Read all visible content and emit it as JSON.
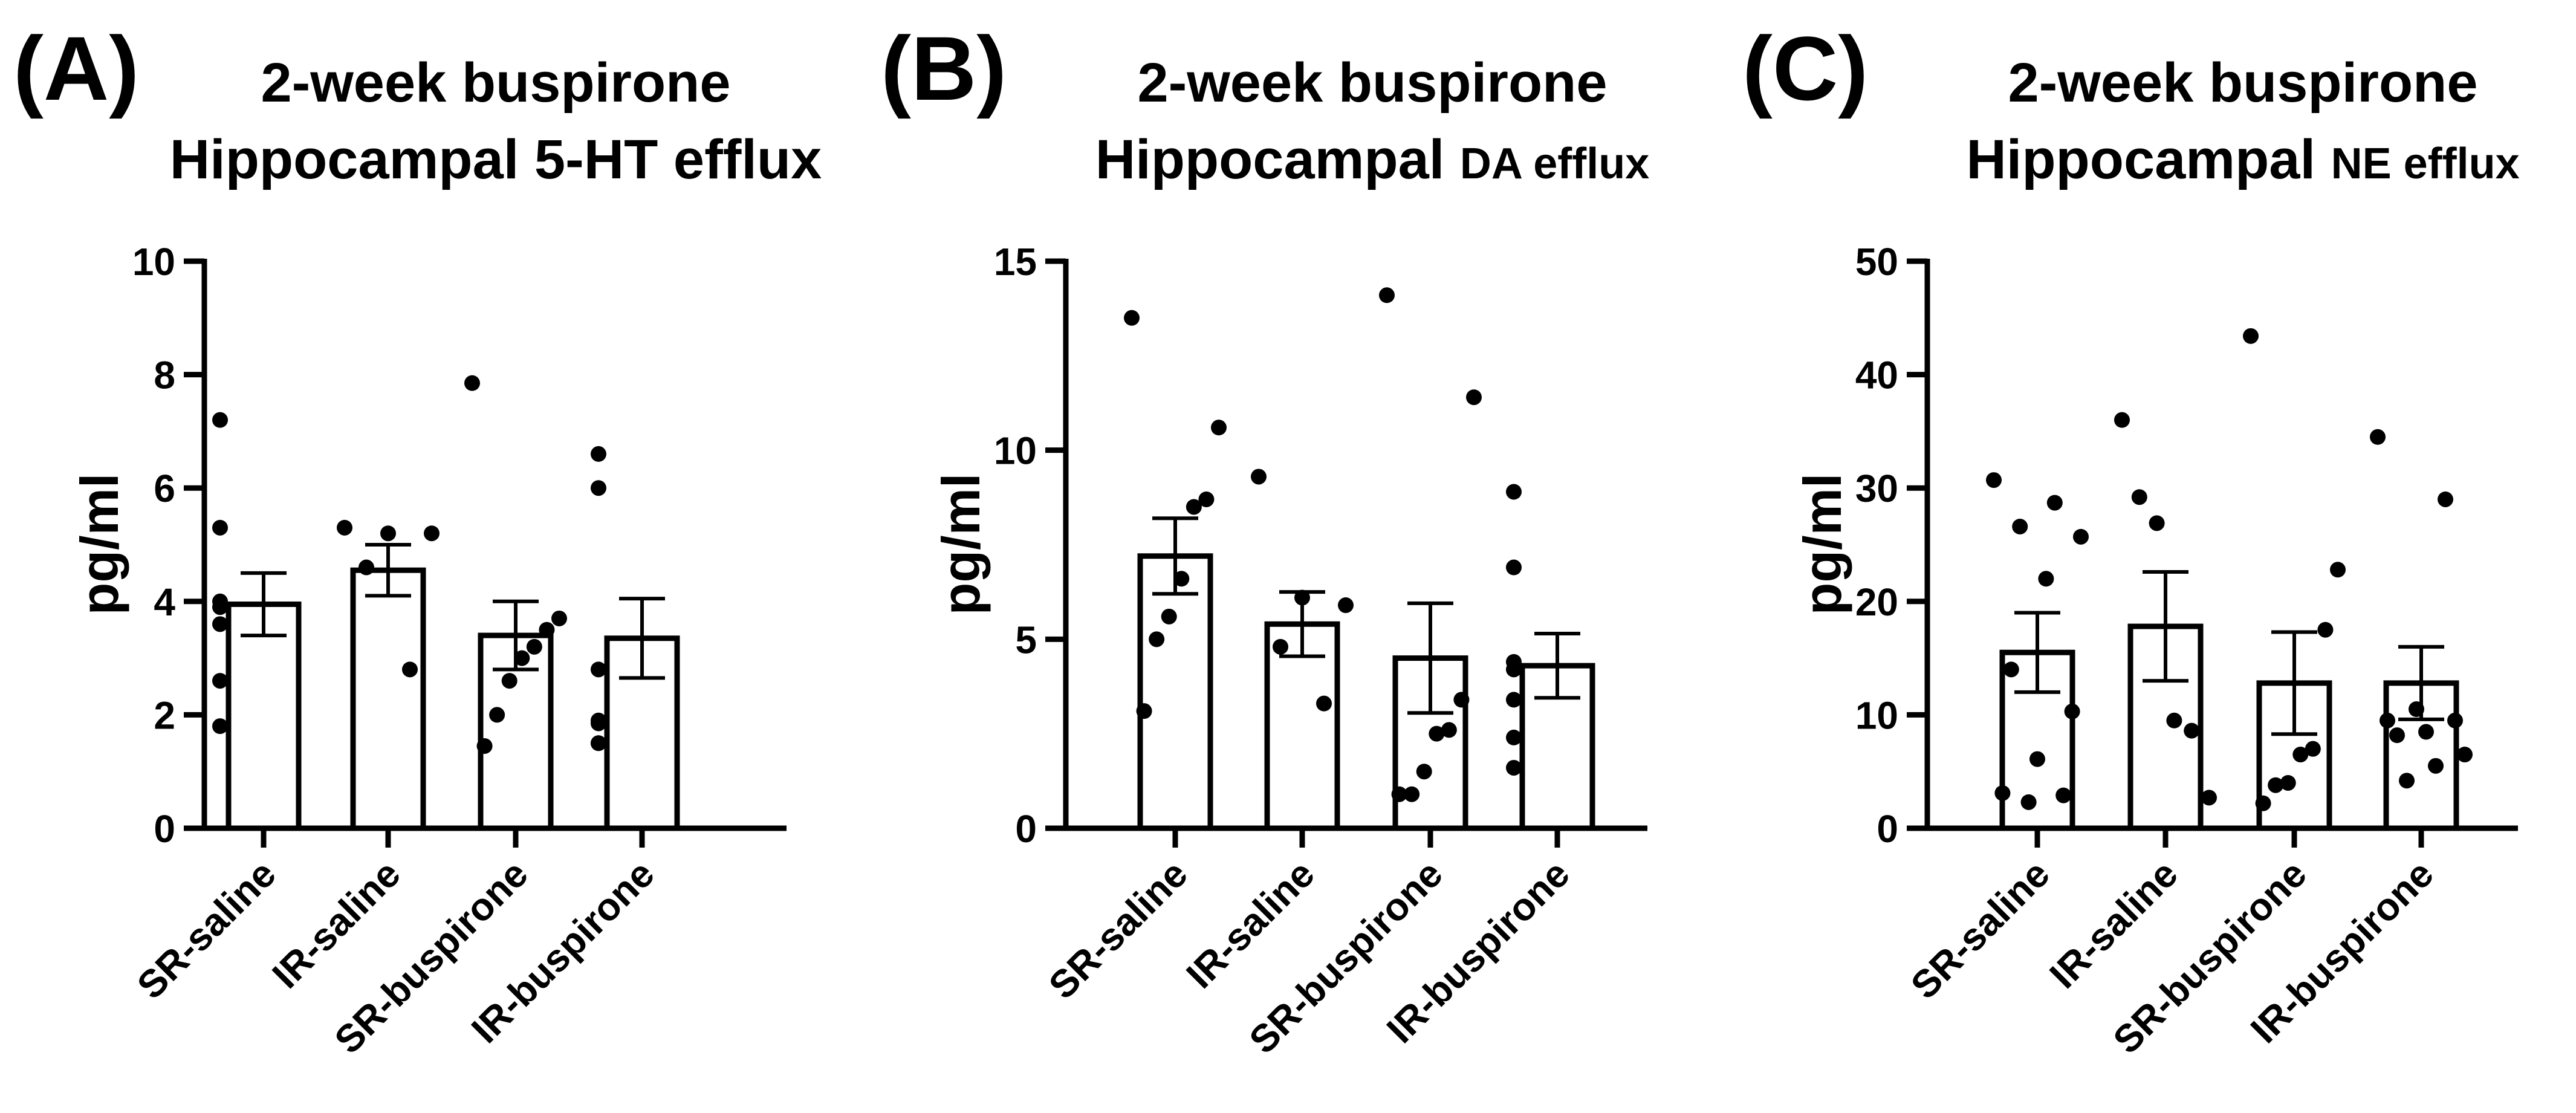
{
  "chart_data": [
    {
      "type": "bar",
      "panel_label": "(A)",
      "title_line1": "2-week buspirone",
      "title_line2": "Hippocampal 5-HT efflux",
      "title_line2_small": "",
      "ylabel": "pg/ml",
      "ylim": [
        0,
        10
      ],
      "yticks": [
        "0",
        "2",
        "4",
        "6",
        "8",
        "10"
      ],
      "tick_values": [
        0,
        2,
        4,
        6,
        8,
        10
      ],
      "categories": [
        "SR-saline",
        "IR-saline",
        "SR-buspirone",
        "IR-buspirone"
      ],
      "values": [
        3.95,
        4.55,
        3.4,
        3.35
      ],
      "errors": [
        0.55,
        0.45,
        0.6,
        0.7
      ],
      "points": [
        [
          7.2,
          5.3,
          4.0,
          3.9,
          3.6,
          2.6,
          1.8
        ],
        [
          5.3,
          5.2,
          5.2,
          4.6,
          2.8
        ],
        [
          7.85,
          3.7,
          3.5,
          3.2,
          3.0,
          2.6,
          2.0,
          1.45
        ],
        [
          6.6,
          6.0,
          2.8,
          1.9,
          1.85,
          1.5,
          1.5
        ]
      ],
      "grid": false
    },
    {
      "type": "bar",
      "panel_label": "(B)",
      "title_line1": "2-week buspirone",
      "title_line2": "Hippocampal ",
      "title_line2_small": "DA efflux",
      "ylabel": "pg/ml",
      "ylim": [
        0,
        15
      ],
      "yticks": [
        "0",
        "5",
        "10",
        "15"
      ],
      "tick_values": [
        0,
        5,
        10,
        15
      ],
      "categories": [
        "SR-saline",
        "IR-saline",
        "SR-buspirone",
        "IR-buspirone"
      ],
      "values": [
        7.2,
        5.4,
        4.5,
        4.3
      ],
      "errors": [
        1.0,
        0.85,
        1.45,
        0.85
      ],
      "points": [
        [
          13.5,
          10.6,
          8.7,
          8.5,
          6.6,
          5.6,
          5.0,
          3.1
        ],
        [
          9.3,
          6.1,
          5.9,
          4.8,
          3.3
        ],
        [
          14.1,
          11.4,
          3.4,
          2.6,
          2.5,
          1.5,
          0.9,
          0.9
        ],
        [
          8.9,
          6.9,
          4.4,
          4.2,
          3.4,
          2.4,
          1.6
        ]
      ],
      "grid": false
    },
    {
      "type": "bar",
      "panel_label": "(C)",
      "title_line1": "2-week buspirone",
      "title_line2": "Hippocampal ",
      "title_line2_small": "NE efflux",
      "ylabel": "pg/ml",
      "ylim": [
        0,
        50
      ],
      "yticks": [
        "0",
        "10",
        "20",
        "30",
        "40",
        "50"
      ],
      "tick_values": [
        0,
        10,
        20,
        30,
        40,
        50
      ],
      "categories": [
        "SR-saline",
        "IR-saline",
        "SR-buspirone",
        "IR-buspirone"
      ],
      "values": [
        15.5,
        17.8,
        12.8,
        12.8
      ],
      "errors": [
        3.5,
        4.8,
        4.5,
        3.2
      ],
      "points": [
        [
          30.7,
          28.7,
          26.6,
          25.7,
          22.0,
          14.0,
          10.3,
          6.1,
          3.1,
          2.9,
          2.3
        ],
        [
          36.0,
          29.2,
          26.9,
          9.5,
          8.6,
          2.7
        ],
        [
          43.4,
          22.8,
          17.5,
          7.0,
          6.5,
          4.0,
          3.8,
          2.2
        ],
        [
          34.5,
          29.0,
          10.5,
          9.5,
          9.5,
          8.5,
          8.2,
          6.5,
          5.5,
          4.2
        ]
      ],
      "grid": false
    }
  ]
}
